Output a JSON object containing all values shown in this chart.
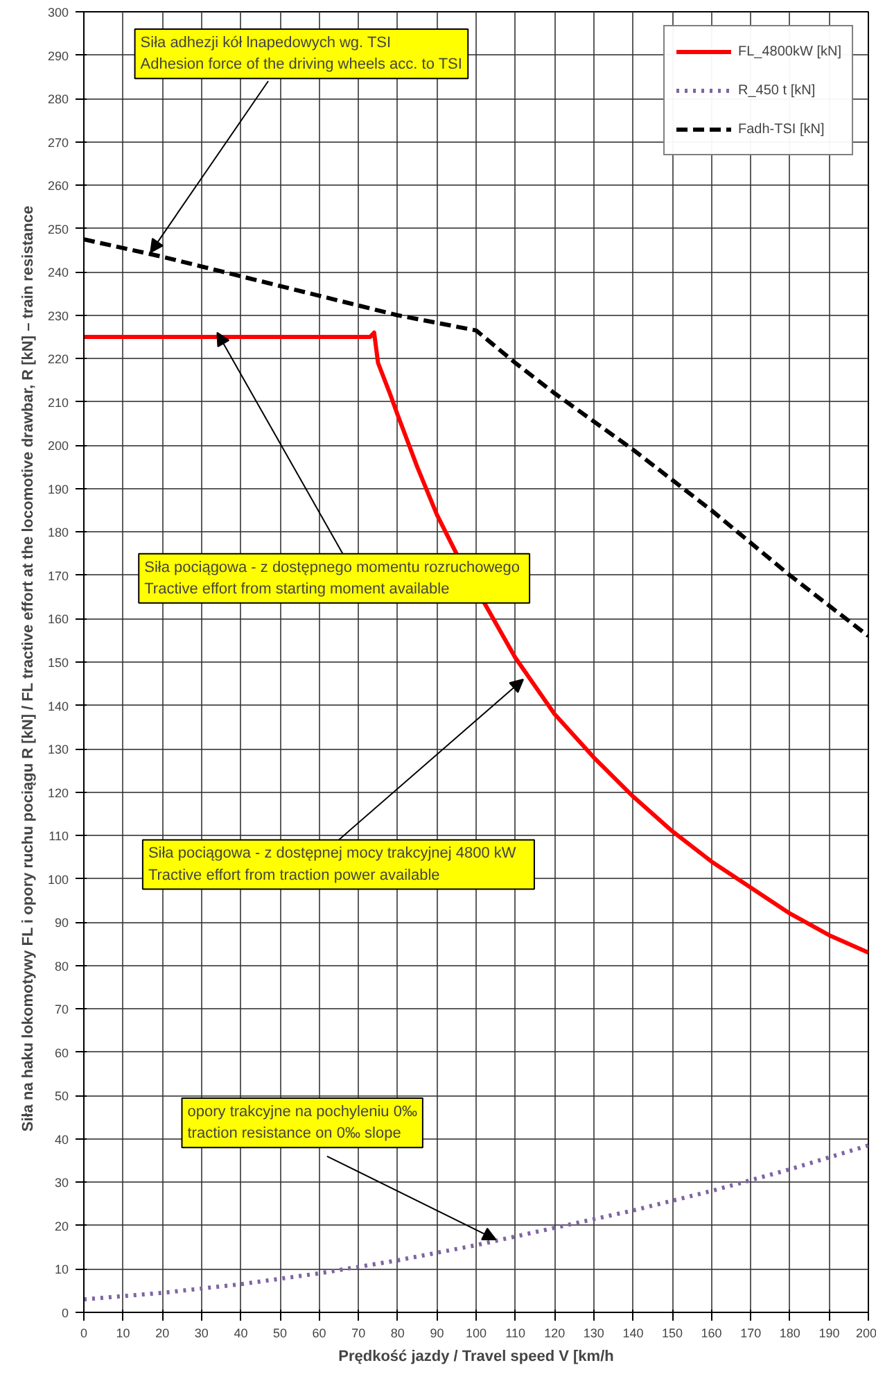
{
  "chart_data": {
    "type": "line",
    "xlabel": "Prędkość jazdy / Travel speed V [km/h",
    "ylabel": "Siła na haku lokomotywy FL i opory ruchu pociągu R  [kN]  / FL tractive effort at the locomotive  drawbar, R [kN] – train resistance",
    "xlim": [
      0,
      200
    ],
    "xticks": [
      0,
      10,
      20,
      30,
      40,
      50,
      60,
      70,
      80,
      90,
      100,
      110,
      120,
      130,
      140,
      150,
      160,
      170,
      180,
      190,
      200
    ],
    "ylim": [
      0,
      300
    ],
    "yticks": [
      0,
      10,
      20,
      30,
      40,
      50,
      60,
      70,
      80,
      90,
      100,
      110,
      120,
      130,
      140,
      150,
      160,
      170,
      180,
      190,
      200,
      210,
      220,
      230,
      240,
      250,
      260,
      270,
      280,
      290,
      300
    ],
    "grid": true,
    "legend": "top right",
    "series": [
      {
        "name": "FL_4800kW [kN]",
        "color": "#ff0000",
        "line_style": "solid",
        "x": [
          0,
          73,
          74,
          75,
          78,
          80,
          85,
          90,
          95,
          110,
          120,
          130,
          140,
          150,
          160,
          170,
          180,
          190,
          200
        ],
        "values": [
          225,
          225,
          226,
          219,
          212,
          207,
          195,
          184,
          175,
          151,
          138,
          128,
          119,
          111,
          104,
          98,
          92,
          87,
          83
        ]
      },
      {
        "name": "R_450 t [kN]",
        "color": "#8064a2",
        "line_style": "dotted",
        "x": [
          0,
          20,
          40,
          60,
          80,
          100,
          120,
          140,
          160,
          180,
          200
        ],
        "values": [
          3,
          4.5,
          6.5,
          9,
          12,
          15.5,
          19.5,
          23.5,
          28,
          33,
          38.5
        ]
      },
      {
        "name": "Fadh-TSI [kN]",
        "color": "#000000",
        "line_style": "dashed",
        "x": [
          0,
          20,
          40,
          60,
          80,
          100,
          110,
          120,
          140,
          160,
          180,
          200
        ],
        "values": [
          247.5,
          243.5,
          239,
          234.5,
          230,
          226.5,
          219,
          212,
          199,
          185,
          170,
          156
        ]
      }
    ],
    "annotations": [
      {
        "text": "Siła adhezji kół lnapedowych wg. TSI\nAdhesion force of the driving wheels acc. to TSI",
        "x": 17,
        "y": 244.5
      },
      {
        "text": "Siła pociągowa  - z dostępnego momentu rozruchowego\nTractive effort from starting moment available",
        "x": 34,
        "y": 226
      },
      {
        "text": "Siła pociągowa  - z dostępnej mocy  trakcyjnej  4800 kW\nTractive effort from traction power available",
        "x": 112,
        "y": 146
      },
      {
        "text": "opory trakcyjne na pochyleniu 0‰\ntraction resistance on 0‰ slope",
        "x": 105,
        "y": 16.8
      }
    ]
  }
}
